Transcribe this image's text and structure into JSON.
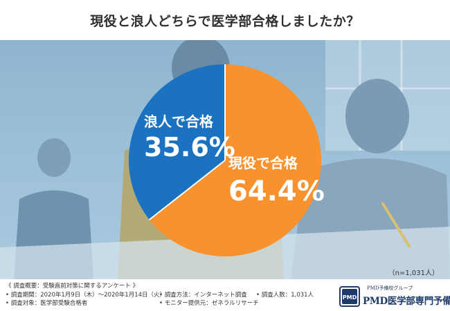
{
  "title": "現役と浪人どちらで医学部合格しましたか？",
  "chart_data": {
    "type": "pie",
    "categories": [
      "現役で合格",
      "浪人で合格"
    ],
    "values": [
      64.4,
      35.6
    ],
    "value_labels": [
      "64.4%",
      "35.6%"
    ],
    "colors": [
      "#f7922f",
      "#1a72c0"
    ],
    "start": "top, clockwise"
  },
  "sample_size": "（n=1,031人）",
  "survey": {
    "heading": "《 調査概要：受験直前対策に関するアンケート 》",
    "period": "• 調査期間：2020年1月9日（木）～2020年1月14日（火）",
    "target": "• 調査対象：医学部受験合格者",
    "method": "• 調査方法：インターネット調査",
    "provider": "• モニター提供元：ゼネラルリサーチ",
    "count": "• 調査人数：1,031人"
  },
  "logo": {
    "group": "PMD予備校グループ",
    "name": "PMD医学部専門予備校",
    "mark_text": "PMD",
    "icon": "pmd-logo-icon"
  }
}
